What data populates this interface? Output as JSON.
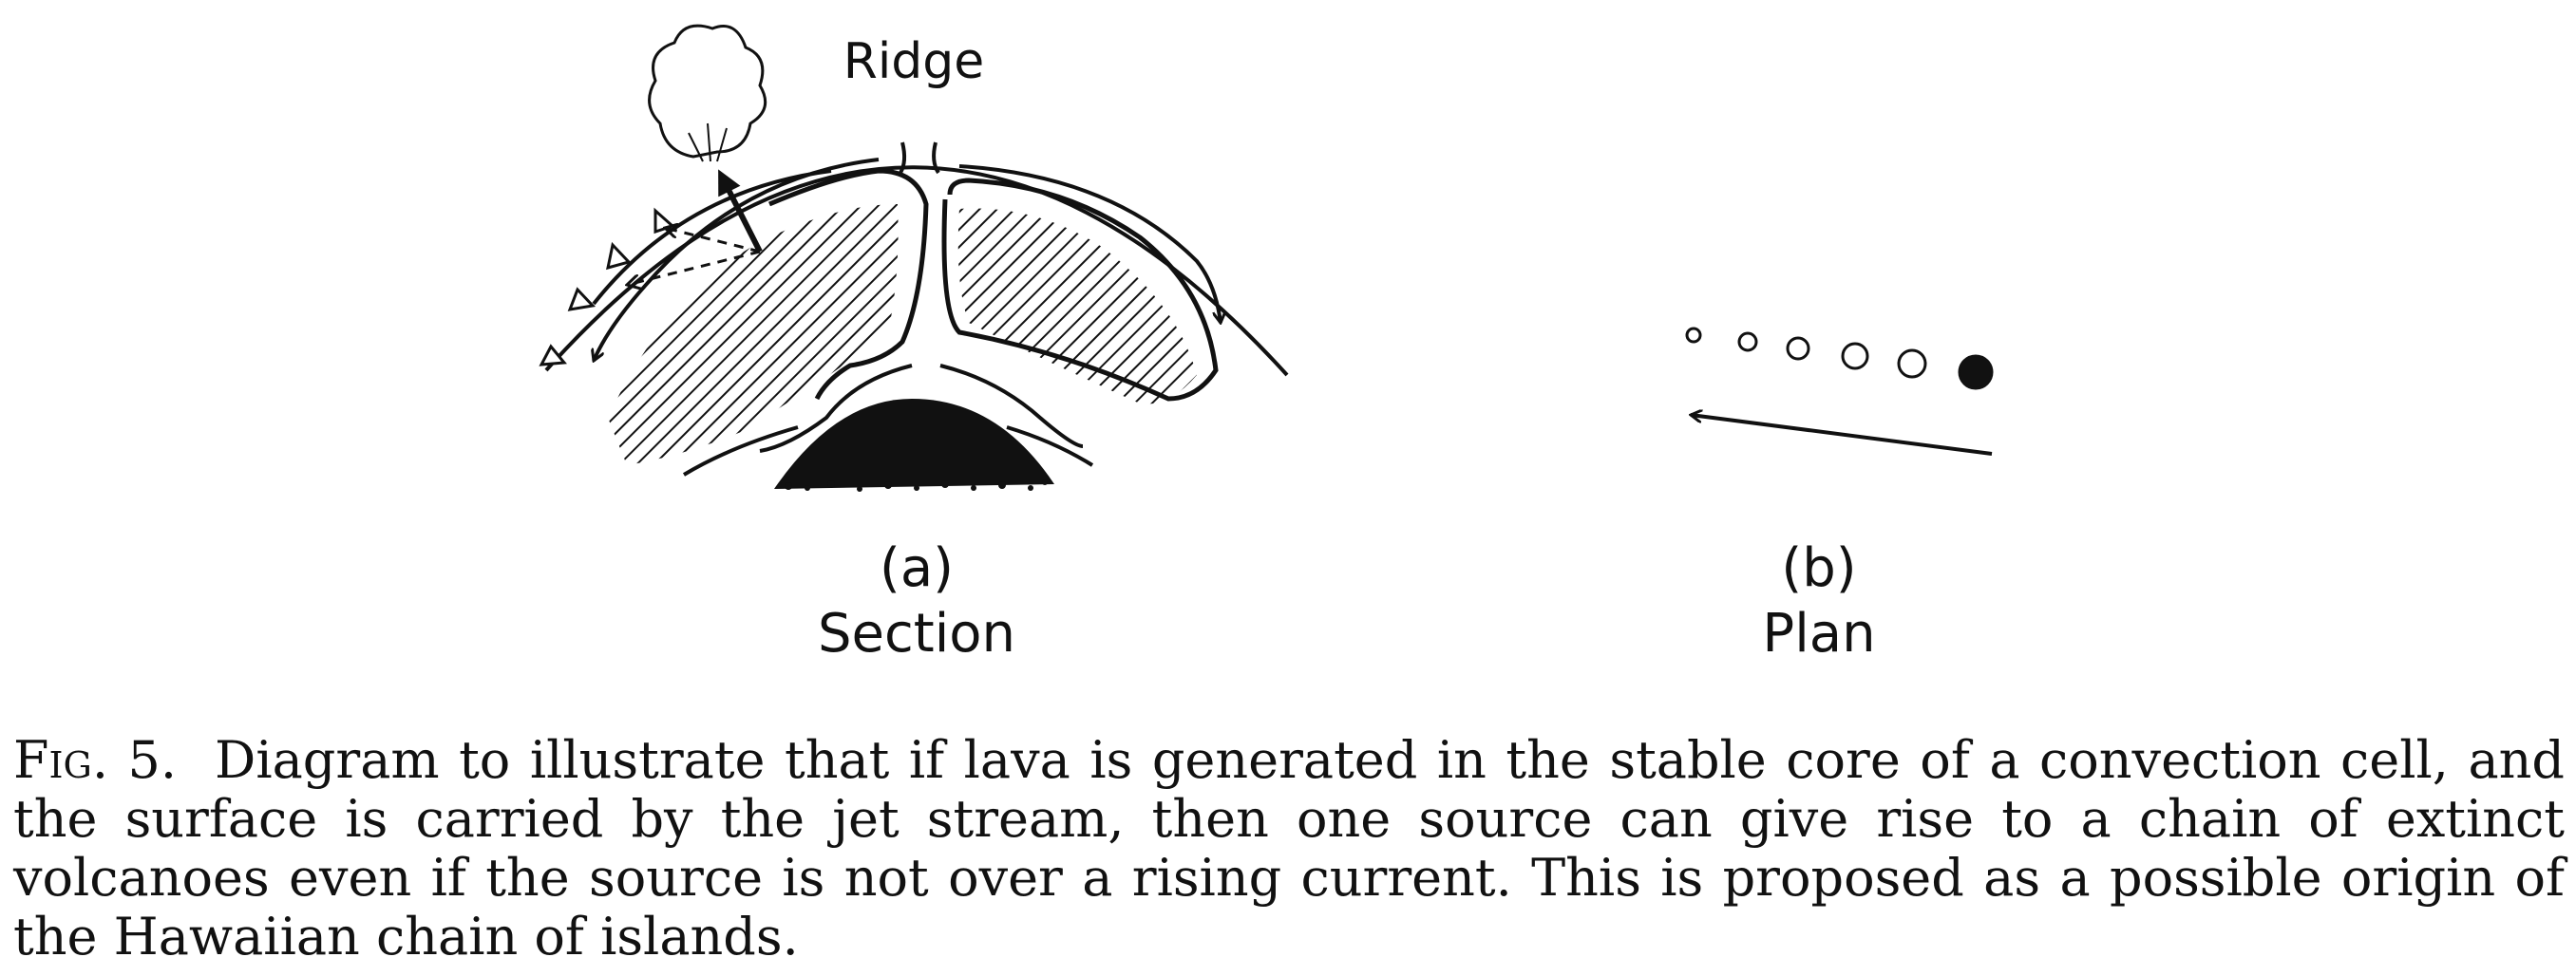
{
  "diagram": {
    "ridge_label": "Ridge",
    "panel_a": {
      "letter": "(a)",
      "title": "Section"
    },
    "panel_b": {
      "letter": "(b)",
      "title": "Plan"
    }
  },
  "caption": {
    "figure_number": "Fig. 5.",
    "text": "Diagram to illustrate that if lava is generated in the stable core of a convection cell, and the surface is carried by the jet stream, then one source can give rise to a chain of extinct volcanoes even if the source is not over a rising current. This is proposed as a possible origin of the Hawaiian chain of islands."
  }
}
